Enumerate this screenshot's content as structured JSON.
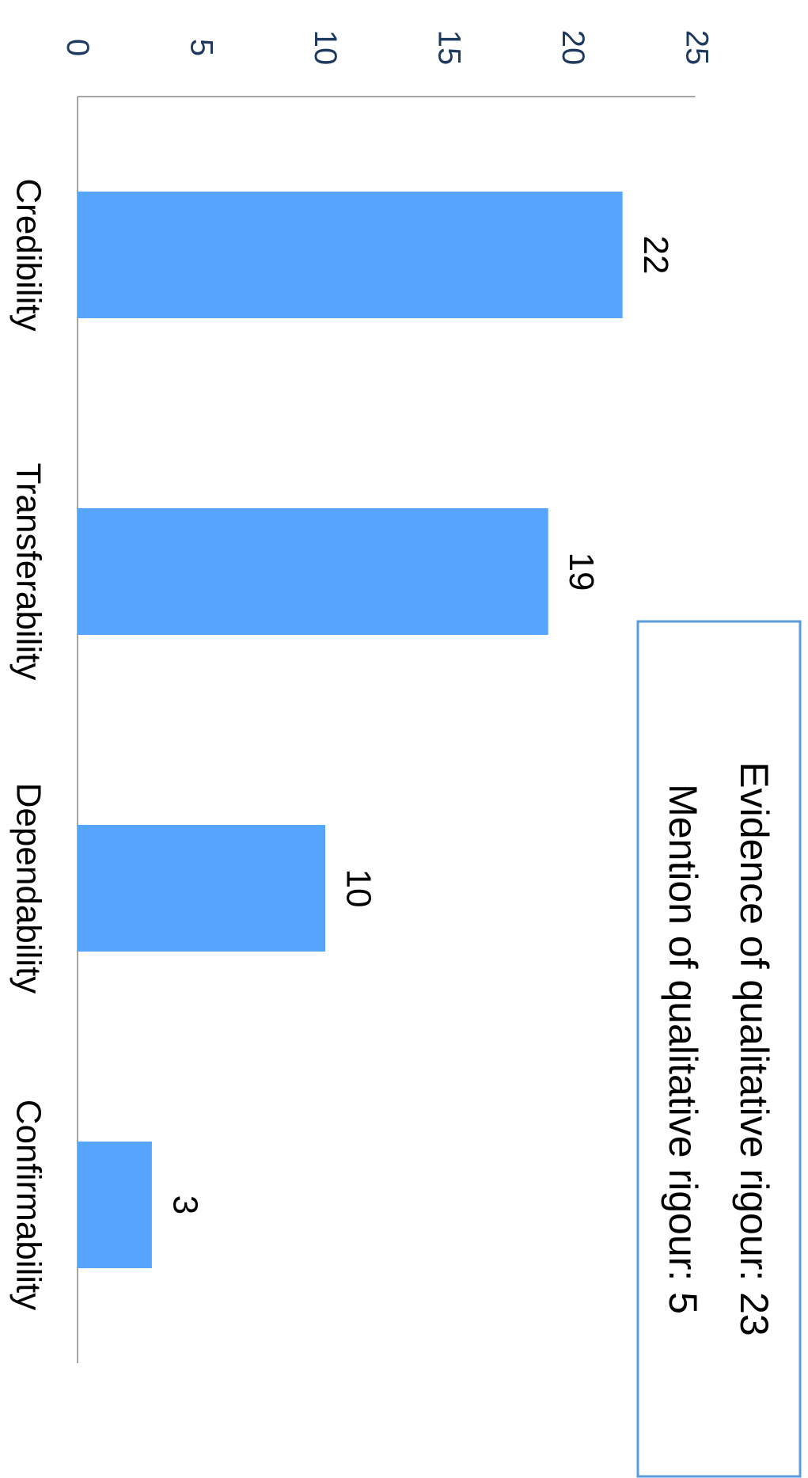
{
  "chart_data": {
    "type": "bar",
    "orientation": "horizontal",
    "categories": [
      "Credibility",
      "Transferability",
      "Dependability",
      "Confirmability"
    ],
    "values": [
      22,
      19,
      10,
      3
    ],
    "data_labels": [
      "22",
      "19",
      "10",
      "3"
    ],
    "value_axis": {
      "range": [
        0,
        25
      ],
      "ticks": [
        "0",
        "5",
        "10",
        "15",
        "20",
        "25"
      ]
    },
    "grid": false,
    "legend": "none",
    "annotation": {
      "lines": [
        "Evidence of qualitative rigour: 23",
        "Mention of qualitative rigour: 5"
      ]
    },
    "colors": {
      "bar": "#55a4fd",
      "axis": "#a6a6a6",
      "tick_text": "#1f3a5f",
      "annotation_border": "#5b9be0"
    }
  }
}
